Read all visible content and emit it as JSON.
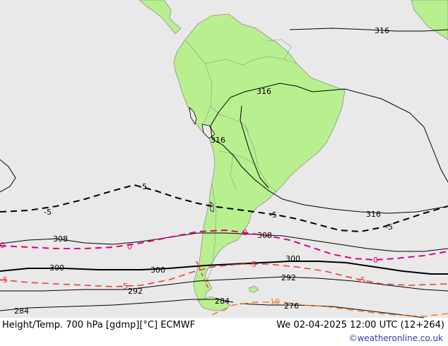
{
  "map": {
    "ocean_color": "#e9e9e9",
    "land_color": "#b8f08f",
    "land_outline_color": "#8e8e8e",
    "contour_labels": {
      "h316_ne": "316",
      "h316_amazon": "316",
      "h316_andes": "316",
      "h316_sa": "316",
      "t5_left": "-5",
      "t5_mid": "-5",
      "t5_coast": "-5",
      "t5_right": "-5",
      "h308_left": "308",
      "h308_mid": "308",
      "t0_left": "0",
      "t0_mid": "0",
      "t0_andes": "0",
      "t0_right": "0",
      "h300_left": "300",
      "h300_mid": "300",
      "h300_right": "300",
      "tm5_left": "-5",
      "tm5_mid": "-5",
      "tm5_patag": "-5",
      "tm5_right": "-5",
      "h292_left": "292",
      "h292_right": "292",
      "h284_left": "284",
      "h284_mid": "284",
      "tm10_label": "-10",
      "h276_label": "276"
    },
    "colors": {
      "height_line": "#000000",
      "temp_plus5": "#000000",
      "temp_zero": "#e0007e",
      "temp_minus5": "#f03232",
      "temp_minus10": "#f07d1e"
    }
  },
  "footer": {
    "left": "Height/Temp. 700 hPa [gdmp][°C] ECMWF",
    "right": "We 02-04-2025 12:00 UTC (12+264)",
    "credit": "©weatheronline.co.uk"
  }
}
